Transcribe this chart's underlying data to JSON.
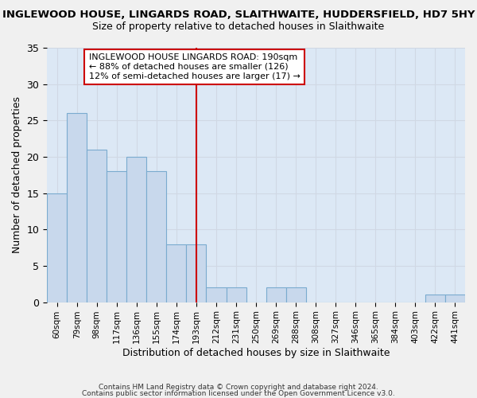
{
  "title1": "INGLEWOOD HOUSE, LINGARDS ROAD, SLAITHWAITE, HUDDERSFIELD, HD7 5HY",
  "title2": "Size of property relative to detached houses in Slaithwaite",
  "xlabel": "Distribution of detached houses by size in Slaithwaite",
  "ylabel": "Number of detached properties",
  "categories": [
    "60sqm",
    "79sqm",
    "98sqm",
    "117sqm",
    "136sqm",
    "155sqm",
    "174sqm",
    "193sqm",
    "212sqm",
    "231sqm",
    "250sqm",
    "269sqm",
    "288sqm",
    "308sqm",
    "327sqm",
    "346sqm",
    "365sqm",
    "384sqm",
    "403sqm",
    "422sqm",
    "441sqm"
  ],
  "values": [
    15,
    26,
    21,
    18,
    20,
    18,
    8,
    8,
    2,
    2,
    0,
    2,
    2,
    0,
    0,
    0,
    0,
    0,
    0,
    1,
    1
  ],
  "bar_color": "#c8d8ec",
  "bar_edge_color": "#7aabcf",
  "vline_x_index": 7,
  "vline_color": "#cc0000",
  "annotation_line1": "INGLEWOOD HOUSE LINGARDS ROAD: 190sqm",
  "annotation_line2": "← 88% of detached houses are smaller (126)",
  "annotation_line3": "12% of semi-detached houses are larger (17) →",
  "annotation_box_color": "#ffffff",
  "annotation_box_edge_color": "#cc0000",
  "ylim": [
    0,
    35
  ],
  "yticks": [
    0,
    5,
    10,
    15,
    20,
    25,
    30,
    35
  ],
  "grid_color": "#d0d8e4",
  "background_color": "#dce8f5",
  "fig_background_color": "#f0f0f0",
  "footer_line1": "Contains HM Land Registry data © Crown copyright and database right 2024.",
  "footer_line2": "Contains public sector information licensed under the Open Government Licence v3.0."
}
